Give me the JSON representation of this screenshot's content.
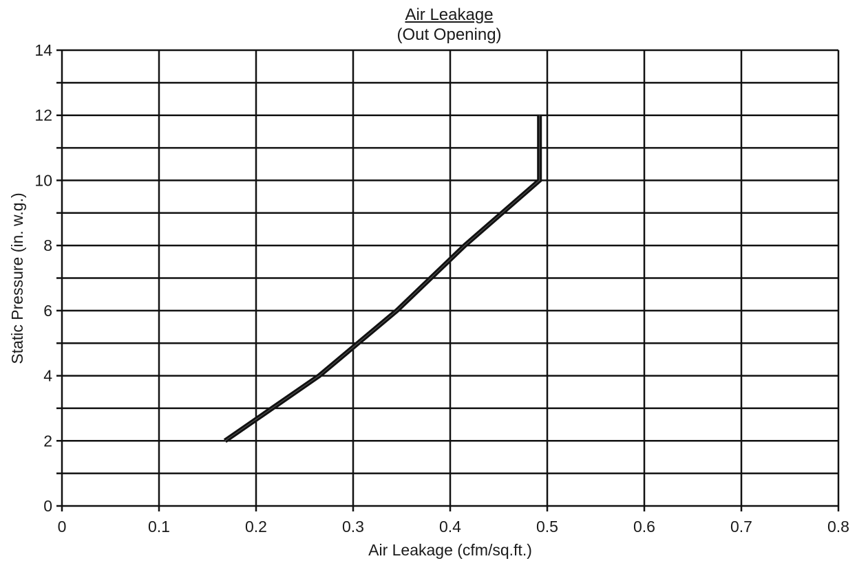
{
  "chart_data": {
    "type": "line",
    "title": "Air Leakage",
    "subtitle": "(Out Opening)",
    "xlabel": "Air Leakage (cfm/sq.ft.)",
    "ylabel": "Static Pressure (in. w.g.)",
    "xlim": [
      0,
      0.8
    ],
    "ylim": [
      0,
      14
    ],
    "x_ticks": [
      0,
      0.1,
      0.2,
      0.3,
      0.4,
      0.5,
      0.6,
      0.7,
      0.8
    ],
    "x_tick_labels": [
      "0",
      "0.1",
      "0.2",
      "0.3",
      "0.4",
      "0.5",
      "0.6",
      "0.7",
      "0.8"
    ],
    "y_ticks": [
      0,
      2,
      4,
      6,
      8,
      10,
      12,
      14
    ],
    "y_tick_labels": [
      "0",
      "2",
      "4",
      "6",
      "8",
      "10",
      "12",
      "14"
    ],
    "y_minor_step": 1,
    "grid": true,
    "series": [
      {
        "x": [
          0.168,
          0.265,
          0.345,
          0.415,
          0.492,
          0.492
        ],
        "y": [
          2,
          4,
          6,
          8,
          10,
          12
        ]
      }
    ],
    "colors": {
      "line": "#111111",
      "grid": "#111111",
      "text": "#1a1a1a"
    }
  }
}
